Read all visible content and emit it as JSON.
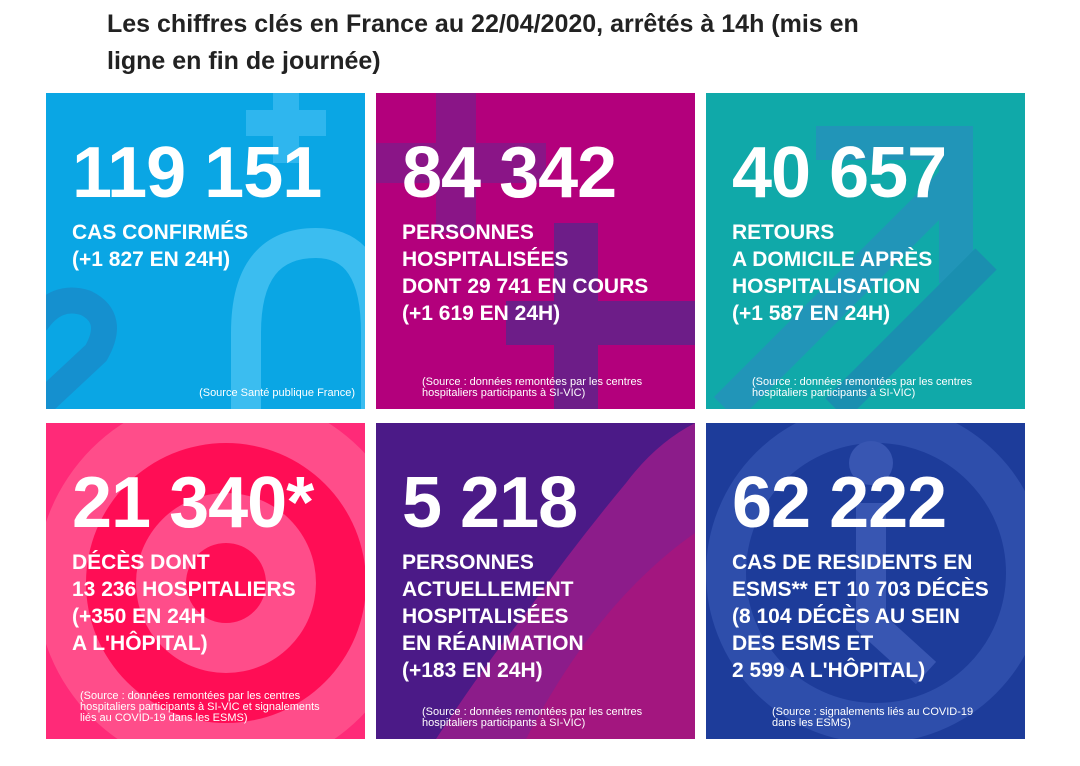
{
  "title": "Les chiffres clés en France au 22/04/2020, arrêtés à 14h (mis en ligne en fin de journée)",
  "title_lines": [
    "Les chiffres clés en France au 22/04/2020, arrêtés à 14h (mis en",
    "ligne en fin de journée)"
  ],
  "tiles": [
    {
      "value": "119 151",
      "label_lines": [
        "CAS CONFIRMÉS",
        "(+1 827 EN 24H)"
      ],
      "source_lines": [
        "(Source Santé publique France)"
      ],
      "color": "#0aa6e4"
    },
    {
      "value": "84 342",
      "label_lines": [
        "PERSONNES",
        "HOSPITALISÉES",
        "DONT 29 741 EN COURS",
        "(+1 619 EN 24H)"
      ],
      "source_lines": [
        "(Source : données remontées par les centres",
        "hospitaliers participants à SI-VIC)"
      ],
      "color": "#b3007c"
    },
    {
      "value": "40 657",
      "label_lines": [
        "RETOURS",
        "A DOMICILE APRÈS",
        "HOSPITALISATION",
        "(+1 587 EN 24H)"
      ],
      "source_lines": [
        "(Source : données remontées par les centres",
        "hospitaliers participants à SI-VIC)"
      ],
      "color": "#10a9a9"
    },
    {
      "value": "21 340*",
      "label_lines": [
        "DÉCÈS DONT",
        "13 236 HOSPITALIERS",
        "(+350 EN 24H",
        "A L'HÔPITAL)"
      ],
      "source_lines": [
        "(Source : données remontées par les centres",
        "hospitaliers participants à SI-VIC et signalements",
        "liés au COVID-19 dans les ESMS)"
      ],
      "color": "#ff2a78"
    },
    {
      "value": "5 218",
      "label_lines": [
        "PERSONNES",
        "ACTUELLEMENT",
        "HOSPITALISÉES",
        "EN RÉANIMATION",
        "(+183 EN 24H)"
      ],
      "source_lines": [
        "(Source : données remontées par les centres",
        "hospitaliers participants à SI-VIC)"
      ],
      "color": "#4b1a87"
    },
    {
      "value": "62 222",
      "label_lines": [
        "CAS DE RESIDENTS EN",
        "ESMS** ET 10 703 DÉCÈS",
        "(8 104 DÉCÈS AU SEIN",
        "DES ESMS ET",
        "2 599 A L'HÔPITAL)"
      ],
      "source_lines": [
        "(Source : signalements liés au COVID-19",
        "dans les ESMS)"
      ],
      "color": "#1d3c9a"
    }
  ]
}
